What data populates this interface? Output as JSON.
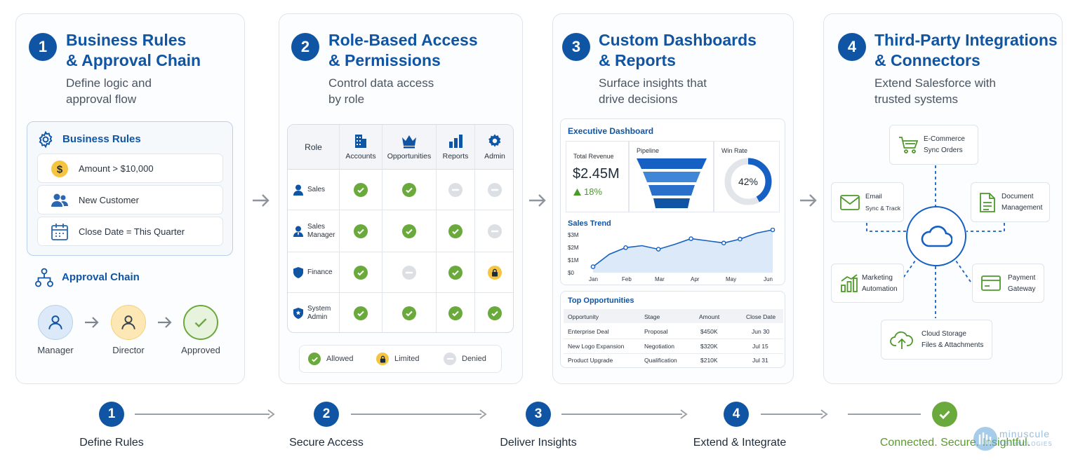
{
  "cards": [
    {
      "num": "1",
      "title1": "Business Rules",
      "title2": "& Approval Chain",
      "sub1": "Define logic and",
      "sub2": "approval flow"
    },
    {
      "num": "2",
      "title1": "Role-Based Access",
      "title2": "& Permissions",
      "sub1": "Control data access",
      "sub2": "by role"
    },
    {
      "num": "3",
      "title1": "Custom Dashboards",
      "title2": "& Reports",
      "sub1": "Surface insights that",
      "sub2": "drive decisions"
    },
    {
      "num": "4",
      "title1": "Third-Party Integrations",
      "title2": "& Connectors",
      "sub1": "Extend Salesforce with",
      "sub2": "trusted systems"
    }
  ],
  "business_rules": {
    "heading": "Business Rules",
    "rules": [
      "Amount > $10,000",
      "New Customer",
      "Close Date = This Quarter"
    ],
    "chain_heading": "Approval Chain",
    "approvers": [
      "Manager",
      "Director",
      "Approved"
    ]
  },
  "access": {
    "role_header": "Role",
    "columns": [
      "Accounts",
      "Opportunities",
      "Reports",
      "Admin"
    ],
    "rows": [
      {
        "role1": "Sales",
        "role2": "",
        "cells": [
          "allowed",
          "allowed",
          "denied",
          "denied"
        ]
      },
      {
        "role1": "Sales",
        "role2": "Manager",
        "cells": [
          "allowed",
          "allowed",
          "allowed",
          "denied"
        ]
      },
      {
        "role1": "Finance",
        "role2": "",
        "cells": [
          "allowed",
          "denied",
          "allowed",
          "limited"
        ]
      },
      {
        "role1": "System",
        "role2": "Admin",
        "cells": [
          "allowed",
          "allowed",
          "allowed",
          "allowed"
        ]
      }
    ],
    "legend": {
      "allowed": "Allowed",
      "limited": "Limited",
      "denied": "Denied"
    }
  },
  "dashboard": {
    "title": "Executive Dashboard",
    "revenue_label": "Total Revenue",
    "revenue_value": "$2.45M",
    "revenue_change": "18%",
    "pipeline_label": "Pipeline",
    "winrate_label": "Win Rate",
    "winrate_value": "42%",
    "winrate_fraction": 0.42,
    "trend_title": "Sales Trend",
    "opps_title": "Top Opportunities",
    "opps_headers": [
      "Opportunity",
      "Stage",
      "Amount",
      "Close Date"
    ],
    "opps_rows": [
      [
        "Enterprise Deal",
        "Proposal",
        "$450K",
        "Jun 30"
      ],
      [
        "New Logo Expansion",
        "Negotiation",
        "$320K",
        "Jul 15"
      ],
      [
        "Product Upgrade",
        "Qualification",
        "$210K",
        "Jul 31"
      ]
    ]
  },
  "chart_data": {
    "type": "area",
    "title": "Sales Trend",
    "categories": [
      "Jan",
      "Feb",
      "Mar",
      "Apr",
      "May",
      "Jun"
    ],
    "x": [
      0,
      1,
      2,
      3,
      4,
      5,
      6,
      7,
      8,
      9,
      10,
      11
    ],
    "values": [
      0.45,
      1.4,
      1.9,
      2.05,
      1.78,
      2.15,
      2.58,
      2.42,
      2.25,
      2.55,
      3.0,
      3.25
    ],
    "y_ticks": [
      "$3M",
      "$2M",
      "$1M",
      "$0"
    ],
    "ylim": [
      0,
      3.3
    ],
    "grid": false
  },
  "integrations": {
    "hub_icon": "cloud-icon",
    "nodes": [
      {
        "key": "ecommerce",
        "line1": "E-Commerce",
        "line2": "Sync Orders"
      },
      {
        "key": "email",
        "line1": "Email",
        "line2": "Sync & Track"
      },
      {
        "key": "document",
        "line1": "Document",
        "line2": "Management"
      },
      {
        "key": "marketing",
        "line1": "Marketing",
        "line2": "Automation"
      },
      {
        "key": "payment",
        "line1": "Payment",
        "line2": "Gateway"
      },
      {
        "key": "storage",
        "line1": "Cloud Storage",
        "line2": "Files & Attachments"
      }
    ]
  },
  "timeline": {
    "steps": [
      {
        "num": "1",
        "label": "Define Rules"
      },
      {
        "num": "2",
        "label": "Secure Access"
      },
      {
        "num": "3",
        "label": "Deliver Insights"
      },
      {
        "num": "4",
        "label": "Extend & Integrate"
      }
    ],
    "final_label": "Connected. Secure. Insightful."
  },
  "brand": {
    "logo_text": "minuscule",
    "logo_sub": "TECHNOLOGIES"
  },
  "colors": {
    "primary": "#0f55a4",
    "allowed": "#6aaa3c",
    "limited": "#f5c542",
    "denied": "#dcdfe3",
    "final": "#6aaa3c"
  }
}
